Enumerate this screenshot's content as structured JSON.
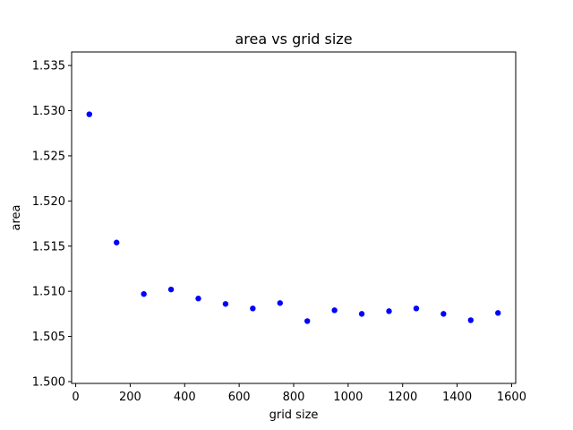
{
  "chart_data": {
    "type": "scatter",
    "title": "area vs grid size",
    "xlabel": "grid size",
    "ylabel": "area",
    "xlim": [
      -15,
      1615
    ],
    "ylim": [
      1.4998,
      1.5365
    ],
    "xticks": [
      0,
      200,
      400,
      600,
      800,
      1000,
      1200,
      1400,
      1600
    ],
    "yticks": [
      1.5,
      1.505,
      1.51,
      1.515,
      1.52,
      1.525,
      1.53,
      1.535
    ],
    "grid": false,
    "marker_color": "#0000ff",
    "x": [
      50,
      150,
      250,
      350,
      450,
      550,
      650,
      750,
      850,
      950,
      1050,
      1150,
      1250,
      1350,
      1450,
      1550
    ],
    "y": [
      1.5296,
      1.5154,
      1.5097,
      1.5102,
      1.5092,
      1.5086,
      1.5081,
      1.5087,
      1.5067,
      1.5079,
      1.5075,
      1.5078,
      1.5081,
      1.5075,
      1.5068,
      1.5076
    ]
  }
}
